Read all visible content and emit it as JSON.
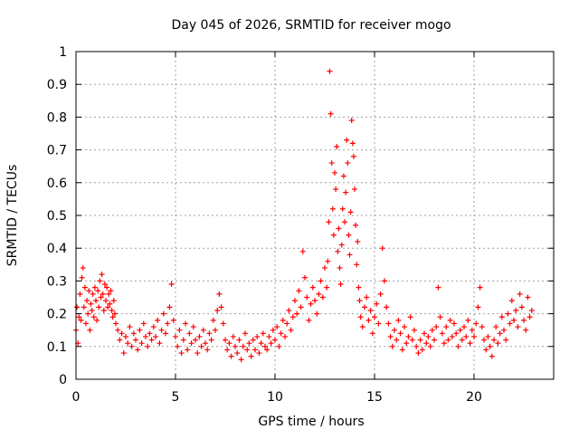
{
  "chart_data": {
    "type": "scatter",
    "title": "Day 045 of 2026, SRMTID for receiver mogo",
    "xlabel": "GPS time / hours",
    "ylabel": "SRMTID / TECUs",
    "xlim": [
      0,
      24
    ],
    "ylim": [
      0,
      1
    ],
    "x_ticks": [
      0,
      5,
      10,
      15,
      20
    ],
    "x_tick_labels": [
      "0",
      "5",
      "10",
      "15",
      "20"
    ],
    "y_ticks": [
      0,
      0.1,
      0.2,
      0.3,
      0.4,
      0.5,
      0.6,
      0.7,
      0.8,
      0.9,
      1
    ],
    "y_tick_labels": [
      "0",
      "0.1",
      "0.2",
      "0.3",
      "0.4",
      "0.5",
      "0.6",
      "0.7",
      "0.8",
      "0.9",
      "1"
    ],
    "grid": true,
    "marker": "+",
    "series": [
      {
        "name": "SRMTID",
        "color": "#ff0000",
        "x": [
          0.0,
          0.05,
          0.1,
          0.15,
          0.2,
          0.25,
          0.3,
          0.35,
          0.4,
          0.45,
          0.5,
          0.55,
          0.6,
          0.65,
          0.7,
          0.75,
          0.8,
          0.85,
          0.9,
          0.95,
          1.0,
          1.05,
          1.1,
          1.15,
          1.2,
          1.25,
          1.3,
          1.35,
          1.4,
          1.45,
          1.5,
          1.55,
          1.6,
          1.65,
          1.7,
          1.75,
          1.8,
          1.85,
          1.9,
          1.95,
          2.0,
          2.1,
          2.2,
          2.3,
          2.4,
          2.5,
          2.6,
          2.7,
          2.8,
          2.9,
          3.0,
          3.1,
          3.2,
          3.3,
          3.4,
          3.5,
          3.6,
          3.7,
          3.8,
          3.9,
          4.0,
          4.1,
          4.2,
          4.3,
          4.4,
          4.5,
          4.6,
          4.7,
          4.8,
          4.9,
          5.0,
          5.1,
          5.2,
          5.3,
          5.4,
          5.5,
          5.6,
          5.7,
          5.8,
          5.9,
          6.0,
          6.1,
          6.2,
          6.3,
          6.4,
          6.5,
          6.6,
          6.7,
          6.8,
          6.9,
          7.0,
          7.1,
          7.2,
          7.3,
          7.4,
          7.5,
          7.6,
          7.7,
          7.8,
          7.9,
          8.0,
          8.1,
          8.2,
          8.3,
          8.4,
          8.5,
          8.6,
          8.7,
          8.8,
          8.9,
          9.0,
          9.1,
          9.2,
          9.3,
          9.4,
          9.5,
          9.6,
          9.7,
          9.8,
          9.9,
          10.0,
          10.1,
          10.2,
          10.3,
          10.4,
          10.5,
          10.6,
          10.7,
          10.8,
          10.9,
          11.0,
          11.1,
          11.2,
          11.3,
          11.4,
          11.5,
          11.6,
          11.7,
          11.8,
          11.9,
          12.0,
          12.1,
          12.2,
          12.3,
          12.4,
          12.5,
          12.6,
          12.65,
          12.7,
          12.75,
          12.8,
          12.85,
          12.9,
          12.95,
          13.0,
          13.05,
          13.1,
          13.15,
          13.2,
          13.25,
          13.3,
          13.35,
          13.4,
          13.45,
          13.5,
          13.55,
          13.6,
          13.65,
          13.7,
          13.75,
          13.8,
          13.85,
          13.9,
          13.95,
          14.0,
          14.05,
          14.1,
          14.15,
          14.2,
          14.25,
          14.3,
          14.4,
          14.5,
          14.6,
          14.7,
          14.8,
          14.9,
          15.0,
          15.1,
          15.2,
          15.3,
          15.4,
          15.5,
          15.6,
          15.7,
          15.8,
          15.9,
          16.0,
          16.1,
          16.2,
          16.3,
          16.4,
          16.5,
          16.6,
          16.7,
          16.8,
          16.9,
          17.0,
          17.1,
          17.2,
          17.3,
          17.4,
          17.5,
          17.6,
          17.7,
          17.8,
          17.9,
          18.0,
          18.1,
          18.2,
          18.3,
          18.4,
          18.5,
          18.6,
          18.7,
          18.8,
          18.9,
          19.0,
          19.1,
          19.2,
          19.3,
          19.4,
          19.5,
          19.6,
          19.7,
          19.8,
          19.9,
          20.0,
          20.1,
          20.2,
          20.3,
          20.4,
          20.5,
          20.6,
          20.7,
          20.8,
          20.9,
          21.0,
          21.1,
          21.2,
          21.3,
          21.4,
          21.5,
          21.6,
          21.7,
          21.8,
          21.9,
          22.0,
          22.1,
          22.2,
          22.3,
          22.4,
          22.5,
          22.6,
          22.7,
          22.8,
          22.9
        ],
        "y": [
          0.15,
          0.22,
          0.11,
          0.19,
          0.26,
          0.18,
          0.31,
          0.34,
          0.22,
          0.28,
          0.17,
          0.24,
          0.2,
          0.27,
          0.15,
          0.23,
          0.21,
          0.26,
          0.19,
          0.28,
          0.24,
          0.18,
          0.27,
          0.22,
          0.3,
          0.25,
          0.32,
          0.26,
          0.21,
          0.29,
          0.24,
          0.28,
          0.22,
          0.26,
          0.23,
          0.27,
          0.21,
          0.19,
          0.24,
          0.2,
          0.17,
          0.15,
          0.12,
          0.14,
          0.08,
          0.13,
          0.11,
          0.16,
          0.1,
          0.14,
          0.12,
          0.09,
          0.15,
          0.11,
          0.17,
          0.13,
          0.1,
          0.14,
          0.12,
          0.16,
          0.13,
          0.18,
          0.11,
          0.15,
          0.2,
          0.14,
          0.17,
          0.22,
          0.29,
          0.18,
          0.13,
          0.1,
          0.15,
          0.08,
          0.12,
          0.17,
          0.09,
          0.14,
          0.11,
          0.16,
          0.12,
          0.08,
          0.13,
          0.1,
          0.15,
          0.11,
          0.09,
          0.14,
          0.12,
          0.18,
          0.15,
          0.21,
          0.26,
          0.22,
          0.17,
          0.12,
          0.09,
          0.11,
          0.07,
          0.13,
          0.1,
          0.08,
          0.12,
          0.06,
          0.1,
          0.14,
          0.09,
          0.11,
          0.07,
          0.12,
          0.09,
          0.13,
          0.08,
          0.11,
          0.14,
          0.1,
          0.09,
          0.13,
          0.11,
          0.15,
          0.12,
          0.16,
          0.1,
          0.14,
          0.18,
          0.13,
          0.17,
          0.21,
          0.15,
          0.19,
          0.24,
          0.2,
          0.27,
          0.22,
          0.39,
          0.31,
          0.25,
          0.18,
          0.23,
          0.28,
          0.24,
          0.2,
          0.26,
          0.3,
          0.25,
          0.34,
          0.28,
          0.36,
          0.48,
          0.94,
          0.81,
          0.66,
          0.52,
          0.44,
          0.63,
          0.58,
          0.71,
          0.39,
          0.46,
          0.34,
          0.29,
          0.41,
          0.52,
          0.62,
          0.48,
          0.57,
          0.73,
          0.66,
          0.44,
          0.38,
          0.51,
          0.79,
          0.72,
          0.68,
          0.58,
          0.47,
          0.35,
          0.42,
          0.28,
          0.24,
          0.19,
          0.16,
          0.22,
          0.25,
          0.18,
          0.21,
          0.14,
          0.19,
          0.23,
          0.17,
          0.26,
          0.4,
          0.3,
          0.22,
          0.17,
          0.13,
          0.1,
          0.15,
          0.12,
          0.18,
          0.14,
          0.09,
          0.16,
          0.11,
          0.13,
          0.19,
          0.12,
          0.15,
          0.1,
          0.08,
          0.12,
          0.09,
          0.14,
          0.11,
          0.13,
          0.1,
          0.15,
          0.12,
          0.16,
          0.28,
          0.19,
          0.14,
          0.11,
          0.16,
          0.12,
          0.18,
          0.13,
          0.17,
          0.14,
          0.1,
          0.15,
          0.12,
          0.16,
          0.13,
          0.18,
          0.11,
          0.15,
          0.13,
          0.17,
          0.22,
          0.28,
          0.16,
          0.12,
          0.09,
          0.13,
          0.1,
          0.07,
          0.12,
          0.16,
          0.11,
          0.14,
          0.19,
          0.15,
          0.12,
          0.2,
          0.17,
          0.24,
          0.18,
          0.21,
          0.16,
          0.26,
          0.22,
          0.18,
          0.15,
          0.25,
          0.19,
          0.21
        ]
      }
    ]
  }
}
